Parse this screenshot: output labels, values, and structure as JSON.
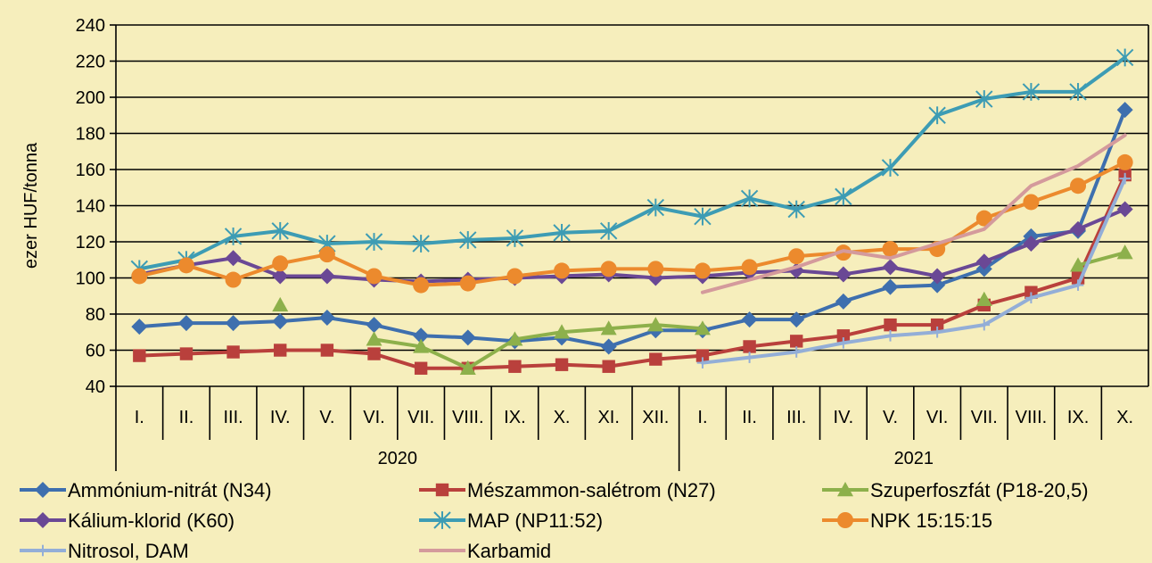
{
  "chart_data": {
    "type": "line",
    "ylabel": "ezer HUF/tonna",
    "ylim": [
      40,
      240
    ],
    "yticks": [
      40,
      60,
      80,
      100,
      120,
      140,
      160,
      180,
      200,
      220,
      240
    ],
    "grid": "horizontal",
    "legend_position": "bottom",
    "x_months": [
      "I.",
      "II.",
      "III.",
      "IV.",
      "V.",
      "VI.",
      "VII.",
      "VIII.",
      "IX.",
      "X.",
      "XI.",
      "XII.",
      "I.",
      "II.",
      "III.",
      "IV.",
      "V.",
      "VI.",
      "VII.",
      "VIII.",
      "IX.",
      "X."
    ],
    "x_years": [
      {
        "label": "2020",
        "start": 0,
        "end": 11
      },
      {
        "label": "2021",
        "start": 12,
        "end": 21
      }
    ],
    "series": [
      {
        "name": "Ammónium-nitrát (N34)",
        "color": "#3e6fae",
        "marker": "diamond",
        "values": [
          73,
          75,
          75,
          76,
          78,
          74,
          68,
          67,
          65,
          67,
          62,
          71,
          71,
          77,
          77,
          87,
          95,
          96,
          105,
          123,
          126,
          193
        ]
      },
      {
        "name": "Mészammon-salétrom (N27)",
        "color": "#b9403c",
        "marker": "square",
        "values": [
          57,
          58,
          59,
          60,
          60,
          58,
          50,
          50,
          51,
          52,
          51,
          55,
          57,
          62,
          65,
          68,
          74,
          74,
          85,
          92,
          100,
          157
        ]
      },
      {
        "name": "Szuperfoszfát (P18-20,5)",
        "color": "#8db04b",
        "marker": "triangle",
        "values": [
          null,
          null,
          null,
          85,
          null,
          66,
          62,
          50,
          66,
          70,
          72,
          74,
          72,
          null,
          null,
          null,
          null,
          null,
          88,
          null,
          107,
          114
        ]
      },
      {
        "name": "Kálium-klorid (K60)",
        "color": "#6a4895",
        "marker": "diamond",
        "values": [
          102,
          107,
          111,
          101,
          101,
          99,
          98,
          99,
          100,
          101,
          102,
          100,
          101,
          103,
          104,
          102,
          106,
          101,
          109,
          119,
          127,
          138
        ]
      },
      {
        "name": "MAP (NP11:52)",
        "color": "#3d9cb4",
        "marker": "star",
        "values": [
          105,
          110,
          123,
          126,
          119,
          120,
          119,
          121,
          122,
          125,
          126,
          139,
          134,
          144,
          138,
          145,
          161,
          190,
          199,
          203,
          203,
          222
        ]
      },
      {
        "name": "NPK 15:15:15",
        "color": "#ec8a2d",
        "marker": "circle",
        "values": [
          101,
          107,
          99,
          108,
          113,
          101,
          96,
          97,
          101,
          104,
          105,
          105,
          104,
          106,
          112,
          114,
          116,
          116,
          133,
          142,
          151,
          164
        ]
      },
      {
        "name": "Nitrosol, DAM",
        "color": "#93aed7",
        "marker": "plus",
        "values": [
          null,
          null,
          null,
          null,
          null,
          null,
          null,
          null,
          null,
          null,
          null,
          null,
          53,
          56,
          59,
          64,
          68,
          70,
          74,
          89,
          96,
          155
        ]
      },
      {
        "name": "Karbamid",
        "color": "#d49a9c",
        "marker": "none",
        "values": [
          null,
          null,
          null,
          null,
          null,
          null,
          null,
          null,
          null,
          null,
          null,
          null,
          92,
          99,
          106,
          115,
          111,
          119,
          127,
          151,
          162,
          179
        ]
      }
    ]
  }
}
